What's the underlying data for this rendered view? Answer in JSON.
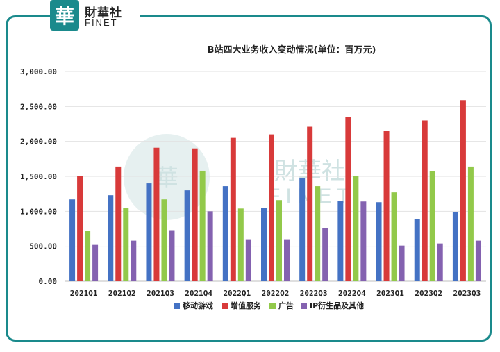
{
  "logo": {
    "badge_char": "華",
    "name_cn": "財華社",
    "name_en": "FINET"
  },
  "watermark": {
    "cn": "財華社",
    "en": "FINET"
  },
  "chart_data": {
    "type": "bar",
    "title": "B站四大业务收入变动情况(单位：百万元)",
    "categories": [
      "2021Q1",
      "2021Q2",
      "2021Q3",
      "2021Q4",
      "2022Q1",
      "2022Q2",
      "2022Q3",
      "2022Q4",
      "2023Q1",
      "2023Q2",
      "2023Q3"
    ],
    "ylim": [
      0,
      3000
    ],
    "yticks": [
      0,
      500,
      1000,
      1500,
      2000,
      2500,
      3000
    ],
    "ytick_labels": [
      "0.00",
      "500.00",
      "1,000.00",
      "1,500.00",
      "2,000.00",
      "2,500.00",
      "3,000.00"
    ],
    "grid": true,
    "legend_position": "bottom",
    "series": [
      {
        "name": "移动游戏",
        "color": "#4472c4",
        "values": [
          1170,
          1230,
          1400,
          1300,
          1360,
          1050,
          1470,
          1150,
          1130,
          890,
          990
        ]
      },
      {
        "name": "增值服务",
        "color": "#d83a3a",
        "values": [
          1500,
          1640,
          1910,
          1900,
          2050,
          2100,
          2210,
          2350,
          2150,
          2300,
          2590
        ]
      },
      {
        "name": "广告",
        "color": "#92c94a",
        "values": [
          720,
          1050,
          1170,
          1580,
          1040,
          1160,
          1360,
          1510,
          1270,
          1570,
          1640
        ]
      },
      {
        "name": "IP衍生品及其他",
        "color": "#8462b0",
        "values": [
          520,
          580,
          730,
          1000,
          600,
          600,
          760,
          1140,
          510,
          540,
          580
        ]
      }
    ]
  }
}
